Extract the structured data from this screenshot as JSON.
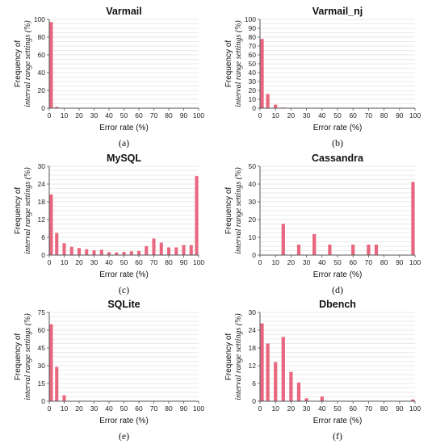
{
  "chart_data": [
    {
      "type": "bar",
      "title": "Varmail",
      "caption": "(a)",
      "xlabel": "Error rate (%)",
      "ylabel": [
        "Frequency of",
        "interval range settings (%)"
      ],
      "ylim": [
        0,
        100
      ],
      "yticks": [
        0,
        20,
        40,
        60,
        80,
        100
      ],
      "xticks": [
        0,
        10,
        20,
        30,
        40,
        50,
        60,
        70,
        80,
        90,
        100
      ],
      "x": [
        0,
        5
      ],
      "values": [
        97,
        1.5
      ],
      "bar_color": "#e8677e",
      "grid": true
    },
    {
      "type": "bar",
      "title": "Varmail_nj",
      "caption": "(b)",
      "xlabel": "Error rate (%)",
      "ylabel": [
        "Frequency of",
        "interval range settings (%)"
      ],
      "ylim": [
        0,
        100
      ],
      "yticks": [
        0,
        10,
        20,
        30,
        40,
        50,
        60,
        70,
        80,
        90,
        100
      ],
      "xticks": [
        0,
        10,
        20,
        30,
        40,
        50,
        60,
        70,
        80,
        90,
        100
      ],
      "x": [
        0,
        5,
        10,
        15
      ],
      "values": [
        78,
        16,
        4,
        0.8
      ],
      "bar_color": "#e8677e",
      "grid": true
    },
    {
      "type": "bar",
      "title": "MySQL",
      "caption": "(c)",
      "xlabel": "Error rate (%)",
      "ylabel": [
        "Frequency of",
        "interval range settings (%)"
      ],
      "ylim": [
        0,
        30
      ],
      "yticks": [
        0,
        6,
        12,
        18,
        24,
        30
      ],
      "xticks": [
        0,
        10,
        20,
        30,
        40,
        50,
        60,
        70,
        80,
        90,
        100
      ],
      "x": [
        0,
        5,
        10,
        15,
        20,
        25,
        30,
        35,
        40,
        45,
        50,
        55,
        60,
        65,
        70,
        75,
        80,
        85,
        90,
        95,
        100
      ],
      "values": [
        20.5,
        7.5,
        4,
        2.8,
        2.4,
        2,
        1.6,
        1.8,
        1,
        0.9,
        1.1,
        1.3,
        1.4,
        3,
        5.6,
        4.2,
        2.6,
        2.6,
        3.4,
        3.4,
        26.7
      ],
      "bar_color": "#e8677e",
      "grid": true
    },
    {
      "type": "bar",
      "title": "Cassandra",
      "caption": "(d)",
      "xlabel": "Error rate (%)",
      "ylabel": [
        "Frequency of",
        "interval range settings (%)"
      ],
      "ylim": [
        0,
        50
      ],
      "yticks": [
        0,
        10,
        20,
        30,
        40,
        50
      ],
      "xticks": [
        0,
        10,
        20,
        30,
        40,
        50,
        60,
        70,
        80,
        90,
        100
      ],
      "x": [
        15,
        25,
        35,
        45,
        60,
        70,
        75,
        100
      ],
      "values": [
        17.6,
        5.9,
        11.8,
        5.9,
        5.9,
        5.9,
        5.9,
        41.2
      ],
      "bar_color": "#e8677e",
      "grid": true
    },
    {
      "type": "bar",
      "title": "SQLite",
      "caption": "(e)",
      "xlabel": "Error rate (%)",
      "ylabel": [
        "Frequency of",
        "interval range settings (%)"
      ],
      "ylim": [
        0,
        75
      ],
      "yticks": [
        0,
        15,
        30,
        45,
        60,
        75
      ],
      "xticks": [
        0,
        10,
        20,
        30,
        40,
        50,
        60,
        70,
        80,
        90,
        100
      ],
      "x": [
        0,
        5,
        10
      ],
      "values": [
        65,
        29,
        5
      ],
      "bar_color": "#e8677e",
      "grid": true
    },
    {
      "type": "bar",
      "title": "Dbench",
      "caption": "(f)",
      "xlabel": "Error rate (%)",
      "ylabel": [
        "Frequency of",
        "interval range settings (%)"
      ],
      "ylim": [
        0,
        30
      ],
      "yticks": [
        0,
        6,
        12,
        18,
        24,
        30
      ],
      "xticks": [
        0,
        10,
        20,
        30,
        40,
        50,
        60,
        70,
        80,
        90,
        100
      ],
      "x": [
        0,
        5,
        10,
        15,
        20,
        25,
        30,
        40,
        100
      ],
      "values": [
        26.3,
        19.5,
        13.2,
        21.7,
        9.9,
        6.3,
        1,
        1.6,
        0.6
      ],
      "bar_color": "#e8677e",
      "grid": true
    }
  ]
}
